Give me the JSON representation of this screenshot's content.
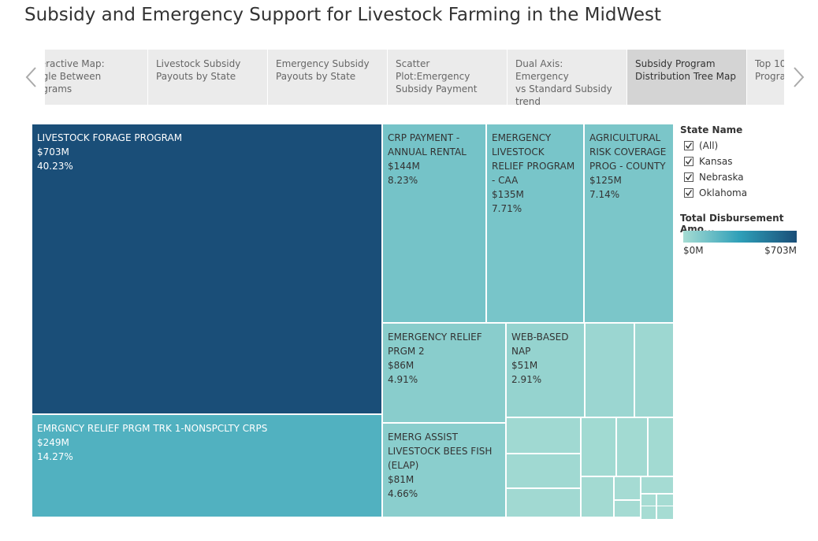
{
  "header": {
    "title": "Subsidy and Emergency Support for Livestock Farming in the MidWest"
  },
  "tabs": {
    "items": [
      "teractive Map:\nggle Between\nograms",
      "Livestock Subsidy\nPayouts by State",
      "Emergency Subsidy\nPayouts by State",
      "Scatter\nPlot:Emergency\nSubsidy Payment",
      "Dual Axis: Emergency\nvs Standard Subsidy\ntrend",
      "Subsidy Program\nDistribution Tree Map",
      "Top 10\nProgra"
    ],
    "selected": 5
  },
  "chart_data": {
    "type": "treemap",
    "categories": [
      "LIVESTOCK FORAGE PROGRAM",
      "EMRGNCY RELIEF PRGM TRK 1-NONSPCLTY CRPS",
      "CRP PAYMENT - ANNUAL RENTAL",
      "EMERGENCY LIVESTOCK RELIEF PROGRAM - CAA",
      "AGRICULTURAL RISK COVERAGE PROG - COUNTY",
      "EMERGENCY RELIEF PRGM 2",
      "WEB-BASED NAP",
      "EMERG ASSIST LIVESTOCK BEES FISH (ELAP)",
      null,
      null,
      null,
      null,
      null,
      null,
      null,
      null,
      null,
      null,
      null,
      null,
      null,
      null,
      null,
      null
    ],
    "values": [
      703,
      249,
      144,
      135,
      125,
      86,
      51,
      81,
      32,
      26,
      19,
      18,
      15,
      14,
      13,
      11,
      9,
      4,
      3,
      4,
      1,
      1,
      1,
      1
    ],
    "value_labels": [
      "$703M",
      "$249M",
      "$144M",
      "$135M",
      "$125M",
      "$86M",
      "$51M",
      "$81M",
      null,
      null,
      null,
      null,
      null,
      null,
      null,
      null,
      null,
      null,
      null,
      null,
      null,
      null,
      null,
      null
    ],
    "percents": [
      40.23,
      14.27,
      8.23,
      7.71,
      7.14,
      4.91,
      2.91,
      4.66,
      null,
      null,
      null,
      null,
      null,
      null,
      null,
      null,
      null,
      null,
      null,
      null,
      null,
      null,
      null,
      null
    ],
    "percent_labels": [
      "40.23%",
      "14.27%",
      "8.23%",
      "7.71%",
      "7.14%",
      "4.91%",
      "2.91%",
      "4.66%",
      null,
      null,
      null,
      null,
      null,
      null,
      null,
      null,
      null,
      null,
      null,
      null,
      null,
      null,
      null,
      null
    ],
    "colors": [
      "#a6dcd3",
      "#2e9fb8",
      "#1a4e78"
    ],
    "filter": {
      "title": "State  Name",
      "options": [
        "(All)",
        "Kansas",
        "Nebraska",
        "Oklahoma"
      ]
    },
    "color_legend": {
      "title": "Total Disbursement Amo...",
      "min": {
        "value": 0,
        "label": "$0M"
      },
      "max": {
        "value": 703,
        "label": "$703M"
      }
    }
  }
}
